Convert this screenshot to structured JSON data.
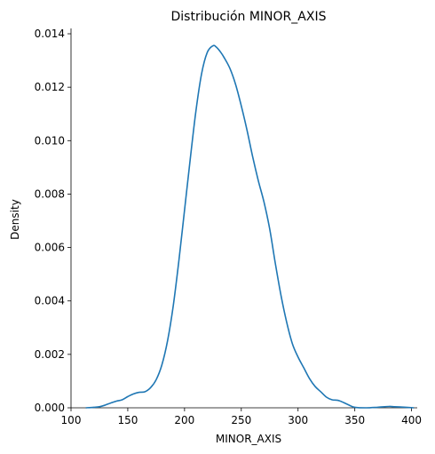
{
  "chart_data": {
    "type": "line",
    "title": "Distribución MINOR_AXIS",
    "xlabel": "MINOR_AXIS",
    "ylabel": "Density",
    "xlim": [
      100,
      405
    ],
    "ylim": [
      0,
      0.0142
    ],
    "x_ticks": [
      100,
      150,
      200,
      250,
      300,
      350,
      400
    ],
    "x_tick_labels": [
      "100",
      "150",
      "200",
      "250",
      "300",
      "350",
      "400"
    ],
    "y_ticks": [
      0,
      0.002,
      0.004,
      0.006,
      0.008,
      0.01,
      0.012,
      0.014
    ],
    "y_tick_labels": [
      "0.000",
      "0.002",
      "0.004",
      "0.006",
      "0.008",
      "0.010",
      "0.012",
      "0.014"
    ],
    "grid": false,
    "color": "#1f77b4",
    "series": [
      {
        "x": [
          113,
          120,
          125,
          130,
          135,
          140,
          145,
          150,
          155,
          160,
          165,
          170,
          175,
          180,
          185,
          190,
          195,
          200,
          205,
          210,
          215,
          220,
          225,
          228,
          232,
          235,
          240,
          245,
          250,
          255,
          260,
          265,
          270,
          275,
          280,
          285,
          290,
          295,
          300,
          305,
          310,
          315,
          320,
          325,
          330,
          335,
          340,
          345,
          350,
          360,
          370,
          380,
          385,
          390,
          395,
          402
        ],
        "y": [
          0.0,
          2e-05,
          4e-05,
          0.0001,
          0.00018,
          0.00025,
          0.0003,
          0.00042,
          0.00052,
          0.00058,
          0.0006,
          0.00075,
          0.00105,
          0.0016,
          0.0025,
          0.0038,
          0.0055,
          0.0074,
          0.0093,
          0.0111,
          0.0125,
          0.0133,
          0.01355,
          0.0135,
          0.0133,
          0.0131,
          0.0127,
          0.0121,
          0.0113,
          0.0104,
          0.0094,
          0.0085,
          0.0077,
          0.0067,
          0.0054,
          0.0042,
          0.0032,
          0.0024,
          0.0019,
          0.0015,
          0.0011,
          0.0008,
          0.0006,
          0.0004,
          0.0003,
          0.00028,
          0.0002,
          0.0001,
          2e-05,
          0.0,
          2e-05,
          5e-05,
          4e-05,
          3e-05,
          2e-05,
          0.0
        ]
      }
    ]
  }
}
